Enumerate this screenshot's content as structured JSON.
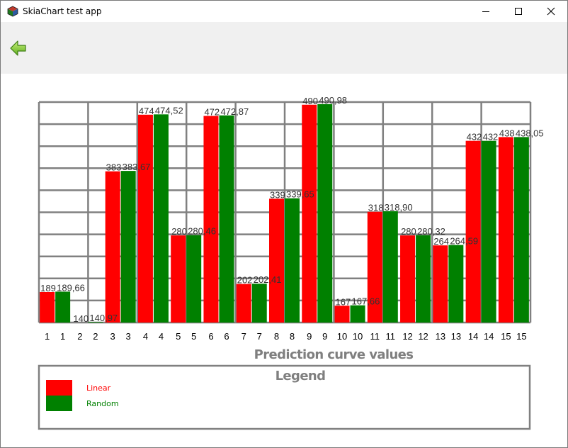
{
  "window": {
    "title": "SkiaChart test app",
    "icon": "app-cube-icon",
    "controls": [
      "minimize-icon",
      "maximize-icon",
      "close-icon"
    ]
  },
  "toolbar": {
    "back_icon": "green-left-arrow-icon"
  },
  "chart_data": {
    "type": "bar",
    "x_title": "Prediction curve values",
    "grid": true,
    "categories": [
      "1",
      "2",
      "3",
      "4",
      "5",
      "6",
      "7",
      "8",
      "9",
      "10",
      "11",
      "12",
      "13",
      "14",
      "15"
    ],
    "series": [
      {
        "name": "Linear",
        "color": "#ff0000",
        "values": [
          189,
          140,
          383,
          474,
          280,
          472,
          202,
          339,
          490,
          167,
          318,
          280,
          264,
          432,
          438
        ],
        "labels": [
          "189",
          "140",
          "383",
          "474",
          "280",
          "472",
          "202",
          "339",
          "490",
          "167",
          "318",
          "280",
          "264",
          "432",
          "438"
        ]
      },
      {
        "name": "Random",
        "color": "#008000",
        "values": [
          189.66,
          140.97,
          383.67,
          474.52,
          280.46,
          472.87,
          202.41,
          339.65,
          490.98,
          167.66,
          318.9,
          280.32,
          264.59,
          432,
          438.05
        ],
        "labels": [
          "189,66",
          "140,97",
          "383,67",
          "474,52",
          "280,46",
          "472,87",
          "202,41",
          "339,65",
          "490,98",
          "167,66",
          "318,90",
          "280,32",
          "264,59",
          "432",
          "438,05"
        ]
      }
    ],
    "legend": {
      "title": "Legend",
      "position": "bottom",
      "entries": [
        "Linear",
        "Random"
      ]
    },
    "ylim": [
      140,
      492
    ]
  }
}
